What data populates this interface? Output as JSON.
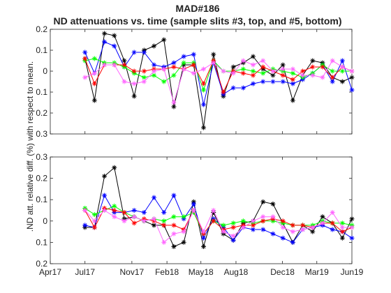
{
  "chart_data": {
    "type": "line",
    "title": "MAD#186",
    "subtitle": "ND attenuations vs. time (sample slits #3, top, and #5, bottom)",
    "ylabel": ".ND att. relative diff. (%) with respect to mean.",
    "x_ticks": [
      "Apr17",
      "Jul17",
      "Nov17",
      "Feb18",
      "May18",
      "Aug18",
      "Dec18",
      "Mar19",
      "Jun19"
    ],
    "x_tick_dates": [
      "2017-04-01",
      "2017-07-01",
      "2017-11-01",
      "2018-02-01",
      "2018-05-01",
      "2018-08-01",
      "2018-12-01",
      "2019-03-01",
      "2019-06-01"
    ],
    "xlim": [
      "2017-04-01",
      "2019-06-01"
    ],
    "grid": false,
    "legend": "none",
    "panels": [
      {
        "position": "top",
        "ylim": [
          -0.3,
          0.2
        ],
        "y_ticks": [
          0.2,
          0.1,
          0,
          -0.1,
          -0.2,
          -0.3
        ],
        "y_tick_labels": [
          "0.2",
          "0.1",
          "0",
          "0.1",
          "0.2",
          "0.3"
        ],
        "series": [
          {
            "color": "#000000",
            "x": [
              "2017-07-01",
              "2017-07-26",
              "2017-08-21",
              "2017-09-16",
              "2017-10-12",
              "2017-11-07",
              "2017-12-03",
              "2017-12-29",
              "2018-01-24",
              "2018-02-19",
              "2018-03-17",
              "2018-04-12",
              "2018-05-08",
              "2018-06-03",
              "2018-06-29",
              "2018-07-25",
              "2018-08-20",
              "2018-09-15",
              "2018-10-11",
              "2018-11-06",
              "2018-12-02",
              "2018-12-28",
              "2019-01-23",
              "2019-02-18",
              "2019-03-16",
              "2019-04-11",
              "2019-05-07",
              "2019-06-01"
            ],
            "values": [
              0.06,
              -0.14,
              0.18,
              0.17,
              0.05,
              -0.12,
              0.1,
              0.12,
              0.15,
              -0.17,
              0.03,
              0.03,
              -0.27,
              0.08,
              -0.12,
              0.02,
              0.04,
              0.07,
              0.01,
              -0.02,
              0.03,
              -0.14,
              -0.02,
              0.05,
              0.04,
              -0.03,
              -0.05,
              -0.03
            ]
          },
          {
            "color": "#0000ff",
            "x": [
              "2017-07-01",
              "2017-07-26",
              "2017-08-21",
              "2017-09-16",
              "2017-10-12",
              "2017-11-07",
              "2017-12-03",
              "2017-12-29",
              "2018-01-24",
              "2018-02-19",
              "2018-03-17",
              "2018-04-12",
              "2018-05-08",
              "2018-06-03",
              "2018-06-29",
              "2018-07-25",
              "2018-08-20",
              "2018-09-15",
              "2018-10-11",
              "2018-11-06",
              "2018-12-02",
              "2018-12-28",
              "2019-01-23",
              "2019-02-18",
              "2019-03-16",
              "2019-04-11",
              "2019-05-07",
              "2019-06-01"
            ],
            "values": [
              0.09,
              -0.01,
              0.14,
              0.12,
              0.02,
              0.09,
              0.09,
              0.03,
              0.02,
              0.04,
              0.07,
              0.08,
              -0.16,
              0.04,
              -0.11,
              -0.08,
              -0.08,
              -0.06,
              -0.05,
              -0.05,
              -0.05,
              -0.06,
              -0.04,
              -0.01,
              0.03,
              -0.05,
              0.05,
              -0.09
            ]
          },
          {
            "color": "#00ff00",
            "x": [
              "2017-07-01",
              "2017-07-26",
              "2017-08-21",
              "2017-09-16",
              "2017-10-12",
              "2017-11-07",
              "2017-12-03",
              "2017-12-29",
              "2018-01-24",
              "2018-02-19",
              "2018-03-17",
              "2018-04-12",
              "2018-05-08",
              "2018-06-03",
              "2018-06-29",
              "2018-07-25",
              "2018-08-20",
              "2018-09-15",
              "2018-10-11",
              "2018-11-06",
              "2018-12-02",
              "2018-12-28",
              "2019-01-23",
              "2019-02-18",
              "2019-03-16",
              "2019-04-11",
              "2019-05-07",
              "2019-06-01"
            ],
            "values": [
              0.05,
              0.06,
              0.04,
              0.04,
              0.02,
              -0.01,
              -0.03,
              -0.02,
              -0.05,
              -0.02,
              0.04,
              0.04,
              -0.09,
              0.05,
              0.0,
              0.0,
              0.01,
              0.0,
              -0.01,
              0.01,
              0.0,
              -0.01,
              -0.03,
              -0.01,
              0.03,
              0.0,
              0.0,
              0.0
            ]
          },
          {
            "color": "#ff0000",
            "x": [
              "2017-07-01",
              "2017-07-26",
              "2017-08-21",
              "2017-09-16",
              "2017-10-12",
              "2017-11-07",
              "2017-12-03",
              "2017-12-29",
              "2018-01-24",
              "2018-02-19",
              "2018-03-17",
              "2018-04-12",
              "2018-05-08",
              "2018-06-03",
              "2018-06-29",
              "2018-07-25",
              "2018-08-20",
              "2018-09-15",
              "2018-10-11",
              "2018-11-06",
              "2018-12-02",
              "2018-12-28",
              "2019-01-23",
              "2019-02-18",
              "2019-03-16",
              "2019-04-11",
              "2019-05-07",
              "2019-06-01"
            ],
            "values": [
              0.06,
              -0.06,
              0.03,
              0.03,
              0.03,
              0.0,
              0.0,
              0.01,
              0.01,
              0.02,
              0.01,
              0.03,
              -0.06,
              0.05,
              -0.1,
              0.0,
              -0.01,
              -0.02,
              0.02,
              0.0,
              -0.02,
              -0.04,
              0.0,
              0.02,
              0.02,
              -0.03,
              0.02,
              0.0
            ]
          },
          {
            "color": "#ff66ff",
            "x": [
              "2017-07-01",
              "2017-07-26",
              "2017-08-21",
              "2017-09-16",
              "2017-10-12",
              "2017-11-07",
              "2017-12-03",
              "2017-12-29",
              "2018-01-24",
              "2018-02-19",
              "2018-03-17",
              "2018-04-12",
              "2018-05-08",
              "2018-06-03",
              "2018-06-29",
              "2018-07-25",
              "2018-08-20",
              "2018-09-15",
              "2018-10-11",
              "2018-11-06",
              "2018-12-02",
              "2018-12-28",
              "2019-01-23",
              "2019-02-18",
              "2019-03-16",
              "2019-04-11",
              "2019-05-07",
              "2019-06-01"
            ],
            "values": [
              -0.03,
              -0.01,
              0.03,
              0.03,
              -0.05,
              -0.06,
              -0.05,
              0.0,
              0.01,
              -0.15,
              0.01,
              -0.01,
              0.01,
              0.04,
              0.0,
              -0.01,
              0.05,
              0.03,
              0.05,
              0.0,
              0.01,
              0.01,
              -0.02,
              -0.02,
              -0.03,
              0.05,
              0.02,
              0.0
            ]
          }
        ]
      },
      {
        "position": "bottom",
        "ylim": [
          -0.2,
          0.3
        ],
        "y_ticks": [
          0.3,
          0.2,
          0.1,
          0,
          -0.1,
          -0.2
        ],
        "y_tick_labels": [
          "0.3",
          "0.2",
          "0.1",
          "0",
          "0.1",
          "0.2"
        ],
        "series": [
          {
            "color": "#000000",
            "x": [
              "2017-07-01",
              "2017-07-26",
              "2017-08-21",
              "2017-09-16",
              "2017-10-12",
              "2017-11-07",
              "2017-12-03",
              "2017-12-29",
              "2018-01-24",
              "2018-02-19",
              "2018-03-17",
              "2018-04-12",
              "2018-05-08",
              "2018-06-03",
              "2018-06-29",
              "2018-07-25",
              "2018-08-20",
              "2018-09-15",
              "2018-10-11",
              "2018-11-06",
              "2018-12-02",
              "2018-12-28",
              "2019-01-23",
              "2019-02-18",
              "2019-03-16",
              "2019-04-11",
              "2019-05-07",
              "2019-06-01"
            ],
            "values": [
              -0.03,
              -0.03,
              0.21,
              0.25,
              0.01,
              0.02,
              0.0,
              -0.02,
              -0.02,
              -0.12,
              -0.1,
              0.09,
              -0.12,
              0.04,
              -0.06,
              -0.09,
              -0.01,
              0.0,
              0.09,
              0.08,
              -0.01,
              -0.1,
              -0.02,
              -0.05,
              0.02,
              -0.01,
              -0.08,
              0.01
            ]
          },
          {
            "color": "#0000ff",
            "x": [
              "2017-07-01",
              "2017-07-26",
              "2017-08-21",
              "2017-09-16",
              "2017-10-12",
              "2017-11-07",
              "2017-12-03",
              "2017-12-29",
              "2018-01-24",
              "2018-02-19",
              "2018-03-17",
              "2018-04-12",
              "2018-05-08",
              "2018-06-03",
              "2018-06-29",
              "2018-07-25",
              "2018-08-20",
              "2018-09-15",
              "2018-10-11",
              "2018-11-06",
              "2018-12-02",
              "2018-12-28",
              "2019-01-23",
              "2019-02-18",
              "2019-03-16",
              "2019-04-11",
              "2019-05-07",
              "2019-06-01"
            ],
            "values": [
              -0.02,
              -0.03,
              0.12,
              0.04,
              0.04,
              0.05,
              0.04,
              0.11,
              0.04,
              0.12,
              0.01,
              0.08,
              -0.08,
              0.01,
              -0.03,
              -0.09,
              -0.03,
              -0.04,
              -0.04,
              -0.06,
              -0.08,
              -0.1,
              -0.04,
              -0.03,
              -0.02,
              -0.04,
              -0.05,
              -0.08
            ]
          },
          {
            "color": "#00ff00",
            "x": [
              "2017-07-01",
              "2017-07-26",
              "2017-08-21",
              "2017-09-16",
              "2017-10-12",
              "2017-11-07",
              "2017-12-03",
              "2017-12-29",
              "2018-01-24",
              "2018-02-19",
              "2018-03-17",
              "2018-04-12",
              "2018-05-08",
              "2018-06-03",
              "2018-06-29",
              "2018-07-25",
              "2018-08-20",
              "2018-09-15",
              "2018-10-11",
              "2018-11-06",
              "2018-12-02",
              "2018-12-28",
              "2019-01-23",
              "2019-02-18",
              "2019-03-16",
              "2019-04-11",
              "2019-05-07",
              "2019-06-01"
            ],
            "values": [
              0.06,
              0.03,
              0.05,
              0.07,
              0.04,
              0.02,
              0.0,
              0.01,
              0.0,
              0.02,
              0.02,
              0.04,
              -0.06,
              0.0,
              -0.02,
              -0.01,
              0.0,
              -0.01,
              0.0,
              0.0,
              -0.01,
              -0.02,
              -0.02,
              -0.02,
              0.0,
              -0.01,
              -0.01,
              -0.02
            ]
          },
          {
            "color": "#ff0000",
            "x": [
              "2017-07-01",
              "2017-07-26",
              "2017-08-21",
              "2017-09-16",
              "2017-10-12",
              "2017-11-07",
              "2017-12-03",
              "2017-12-29",
              "2018-01-24",
              "2018-02-19",
              "2018-03-17",
              "2018-04-12",
              "2018-05-08",
              "2018-06-03",
              "2018-06-29",
              "2018-07-25",
              "2018-08-20",
              "2018-09-15",
              "2018-10-11",
              "2018-11-06",
              "2018-12-02",
              "2018-12-28",
              "2019-01-23",
              "2019-02-18",
              "2019-03-16",
              "2019-04-11",
              "2019-05-07",
              "2019-06-01"
            ],
            "values": [
              0.05,
              -0.03,
              0.06,
              0.05,
              0.04,
              -0.01,
              0.01,
              0.0,
              -0.02,
              -0.02,
              -0.04,
              0.05,
              -0.06,
              0.0,
              -0.04,
              -0.03,
              -0.02,
              -0.02,
              0.0,
              0.01,
              0.0,
              -0.02,
              -0.02,
              -0.03,
              -0.01,
              -0.01,
              -0.05,
              -0.03
            ]
          },
          {
            "color": "#ff66ff",
            "x": [
              "2017-07-01",
              "2017-07-26",
              "2017-08-21",
              "2017-09-16",
              "2017-10-12",
              "2017-11-07",
              "2017-12-03",
              "2017-12-29",
              "2018-01-24",
              "2018-02-19",
              "2018-03-17",
              "2018-04-12",
              "2018-05-08",
              "2018-06-03",
              "2018-06-29",
              "2018-07-25",
              "2018-08-20",
              "2018-09-15",
              "2018-10-11",
              "2018-11-06",
              "2018-12-02",
              "2018-12-28",
              "2019-01-23",
              "2019-02-18",
              "2019-03-16",
              "2019-04-11",
              "2019-05-07",
              "2019-06-01"
            ],
            "values": [
              0.05,
              0.0,
              0.05,
              0.02,
              0.0,
              0.02,
              0.0,
              0.01,
              -0.1,
              -0.06,
              -0.05,
              0.05,
              -0.05,
              0.05,
              -0.05,
              -0.07,
              -0.03,
              0.0,
              0.02,
              0.02,
              -0.03,
              -0.05,
              -0.04,
              -0.03,
              -0.01,
              0.04,
              -0.03,
              -0.03
            ]
          }
        ]
      }
    ]
  }
}
